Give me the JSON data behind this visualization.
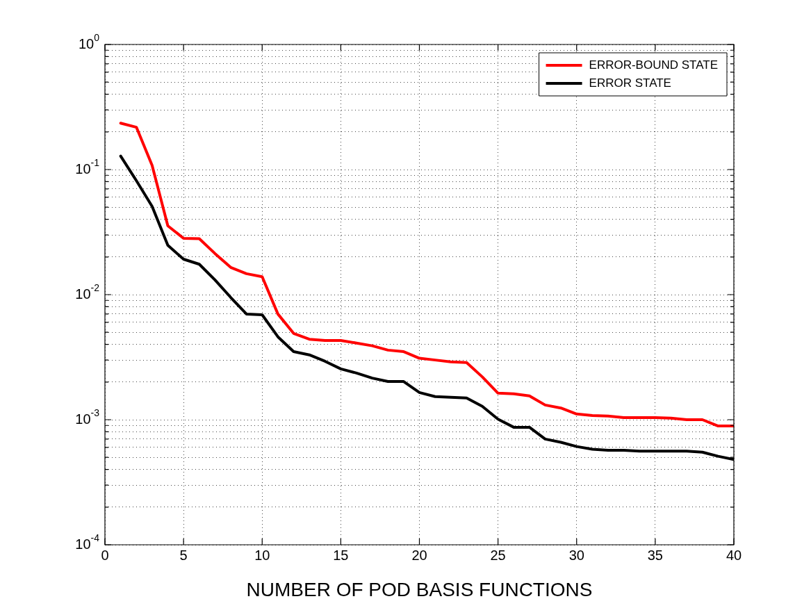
{
  "chart_data": {
    "type": "line",
    "xlabel": "NUMBER OF POD BASIS FUNCTIONS",
    "x": [
      1,
      2,
      3,
      4,
      5,
      6,
      7,
      8,
      9,
      10,
      11,
      12,
      13,
      14,
      15,
      16,
      17,
      18,
      19,
      20,
      21,
      22,
      23,
      24,
      25,
      26,
      27,
      28,
      29,
      30,
      31,
      32,
      33,
      34,
      35,
      36,
      37,
      38,
      39,
      40
    ],
    "series": [
      {
        "name": "ERROR-BOUND STATE",
        "color": "#ff0000",
        "values": [
          0.235,
          0.218,
          0.108,
          0.0355,
          0.0282,
          0.028,
          0.0213,
          0.0165,
          0.0147,
          0.0139,
          0.007,
          0.0049,
          0.0044,
          0.0043,
          0.0043,
          0.0041,
          0.0039,
          0.0036,
          0.0035,
          0.0031,
          0.003,
          0.0029,
          0.00286,
          0.0022,
          0.00163,
          0.00161,
          0.00155,
          0.00131,
          0.00124,
          0.00111,
          0.00108,
          0.00107,
          0.00104,
          0.00104,
          0.00104,
          0.00103,
          0.001,
          0.001,
          0.00089,
          0.00089
        ]
      },
      {
        "name": "ERROR STATE",
        "color": "#000000",
        "values": [
          0.128,
          0.0815,
          0.0508,
          0.0248,
          0.0192,
          0.0175,
          0.0131,
          0.0095,
          0.007,
          0.0069,
          0.0046,
          0.0035,
          0.0033,
          0.00293,
          0.00255,
          0.00236,
          0.00215,
          0.00202,
          0.00202,
          0.00165,
          0.00153,
          0.00151,
          0.00149,
          0.00128,
          0.00101,
          0.00087,
          0.00087,
          0.0007,
          0.00066,
          0.00061,
          0.00058,
          0.00057,
          0.00057,
          0.00056,
          0.00056,
          0.00056,
          0.00056,
          0.00055,
          0.00051,
          0.00048
        ]
      }
    ],
    "xlim": [
      0,
      40
    ],
    "xticks": [
      0,
      5,
      10,
      15,
      20,
      25,
      30,
      35,
      40
    ],
    "ylim": [
      0.0001,
      1
    ],
    "log": "y",
    "yticks": [
      {
        "value": 0.0001,
        "label": "10$^{-4}$"
      },
      {
        "value": 0.0002,
        "label": null
      },
      {
        "value": 0.0003,
        "label": null
      },
      {
        "value": 0.0004,
        "label": null
      },
      {
        "value": 0.0005,
        "label": null
      },
      {
        "value": 0.0006,
        "label": null
      },
      {
        "value": 0.0007,
        "label": null
      },
      {
        "value": 0.0008,
        "label": null
      },
      {
        "value": 0.0009,
        "label": null
      },
      {
        "value": 0.001,
        "label": "10$^{-3}$"
      },
      {
        "value": 0.002,
        "label": null
      },
      {
        "value": 0.003,
        "label": null
      },
      {
        "value": 0.004,
        "label": null
      },
      {
        "value": 0.005,
        "label": null
      },
      {
        "value": 0.006,
        "label": null
      },
      {
        "value": 0.007,
        "label": null
      },
      {
        "value": 0.008,
        "label": null
      },
      {
        "value": 0.009,
        "label": null
      },
      {
        "value": 0.01,
        "label": "10$^{-2}$"
      },
      {
        "value": 0.02,
        "label": null
      },
      {
        "value": 0.03,
        "label": null
      },
      {
        "value": 0.04,
        "label": null
      },
      {
        "value": 0.05,
        "label": null
      },
      {
        "value": 0.06,
        "label": null
      },
      {
        "value": 0.07,
        "label": null
      },
      {
        "value": 0.08,
        "label": null
      },
      {
        "value": 0.09,
        "label": null
      },
      {
        "value": 0.1,
        "label": "10$^{-1}$"
      },
      {
        "value": 0.2,
        "label": null
      },
      {
        "value": 0.3,
        "label": null
      },
      {
        "value": 0.4,
        "label": null
      },
      {
        "value": 0.5,
        "label": null
      },
      {
        "value": 0.6,
        "label": null
      },
      {
        "value": 0.7,
        "label": null
      },
      {
        "value": 0.8,
        "label": null
      },
      {
        "value": 0.9,
        "label": null
      },
      {
        "value": 1,
        "label": "10$^{0}$"
      }
    ],
    "grid": true,
    "legend": "top right",
    "marker": "none",
    "line_style": "solid"
  }
}
